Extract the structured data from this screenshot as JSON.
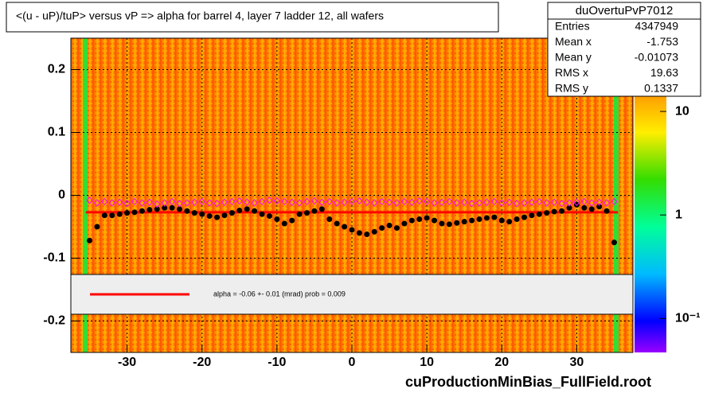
{
  "chart_data": {
    "type": "scatter",
    "title": "<(u - uP)/tuP>  versus   vP => alpha for barrel 4, layer 7 ladder 12, all wafers",
    "footer": "cuProductionMinBias_FullField.root",
    "xlim": [
      -37.5,
      37.5
    ],
    "ylim": [
      -0.25,
      0.25
    ],
    "xticks": [
      -30,
      -20,
      -10,
      0,
      10,
      20,
      30
    ],
    "yticks": [
      0.2,
      0.1,
      0,
      -0.1,
      -0.2
    ],
    "grid": true,
    "x": [
      -35,
      -34,
      -33,
      -32,
      -31,
      -30,
      -29,
      -28,
      -27,
      -26,
      -25,
      -24,
      -23,
      -22,
      -21,
      -20,
      -19,
      -18,
      -17,
      -16,
      -15,
      -14,
      -13,
      -12,
      -11,
      -10,
      -9,
      -8,
      -7,
      -6,
      -5,
      -4,
      -3,
      -2,
      -1,
      0,
      1,
      2,
      3,
      4,
      5,
      6,
      7,
      8,
      9,
      10,
      11,
      12,
      13,
      14,
      15,
      16,
      17,
      18,
      19,
      20,
      21,
      22,
      23,
      24,
      25,
      26,
      27,
      28,
      29,
      30,
      31,
      32,
      33,
      34,
      35
    ],
    "series": [
      {
        "color": "#000000",
        "values": [
          -0.072,
          -0.05,
          -0.032,
          -0.032,
          -0.03,
          -0.028,
          -0.027,
          -0.025,
          -0.023,
          -0.022,
          -0.02,
          -0.02,
          -0.022,
          -0.025,
          -0.028,
          -0.03,
          -0.033,
          -0.035,
          -0.032,
          -0.028,
          -0.024,
          -0.022,
          -0.025,
          -0.03,
          -0.033,
          -0.038,
          -0.045,
          -0.04,
          -0.03,
          -0.028,
          -0.025,
          -0.022,
          -0.038,
          -0.045,
          -0.05,
          -0.055,
          -0.06,
          -0.062,
          -0.058,
          -0.052,
          -0.048,
          -0.052,
          -0.045,
          -0.04,
          -0.038,
          -0.036,
          -0.04,
          -0.045,
          -0.046,
          -0.044,
          -0.042,
          -0.04,
          -0.038,
          -0.036,
          -0.035,
          -0.04,
          -0.042,
          -0.038,
          -0.035,
          -0.032,
          -0.03,
          -0.028,
          -0.026,
          -0.025,
          -0.02,
          -0.015,
          -0.02,
          -0.022,
          -0.018,
          -0.025,
          -0.075
        ]
      },
      {
        "color": "#ff00ff",
        "values": [
          -0.008,
          -0.012,
          -0.01,
          -0.012,
          -0.011,
          -0.013,
          -0.01,
          -0.012,
          -0.011,
          -0.014,
          -0.012,
          -0.01,
          -0.013,
          -0.012,
          -0.011,
          -0.01,
          -0.012,
          -0.013,
          -0.011,
          -0.01,
          -0.009,
          -0.011,
          -0.012,
          -0.01,
          -0.008,
          -0.009,
          -0.01,
          -0.011,
          -0.012,
          -0.01,
          -0.009,
          -0.011,
          -0.01,
          -0.012,
          -0.011,
          -0.01,
          -0.009,
          -0.011,
          -0.012,
          -0.01,
          -0.011,
          -0.012,
          -0.01,
          -0.011,
          -0.009,
          -0.01,
          -0.012,
          -0.011,
          -0.01,
          -0.012,
          -0.011,
          -0.013,
          -0.012,
          -0.011,
          -0.01,
          -0.012,
          -0.011,
          -0.013,
          -0.012,
          -0.011,
          -0.01,
          -0.012,
          -0.011,
          -0.013,
          -0.012,
          -0.011,
          -0.01,
          -0.012,
          -0.011,
          -0.012,
          -0.01
        ]
      }
    ],
    "fit": {
      "color": "#ff0000",
      "x": [
        -35.5,
        35.5
      ],
      "values": [
        -0.027,
        -0.027
      ],
      "label": "alpha =   -0.06 +-  0.01 (mrad) prob = 0.009"
    },
    "zscale": "log",
    "zlim": [
      0.047,
      51
    ],
    "zticks": [
      10,
      1,
      {
        "value": 0.1,
        "label": "10⁻¹"
      }
    ],
    "stats": {
      "title": "duOvertuPvP7012",
      "rows": [
        [
          "Entries",
          4347949
        ],
        [
          "Mean x",
          -1.753
        ],
        [
          "Mean y",
          -0.01073
        ],
        [
          "RMS x",
          19.63
        ],
        [
          "RMS y",
          0.1337
        ]
      ]
    }
  }
}
